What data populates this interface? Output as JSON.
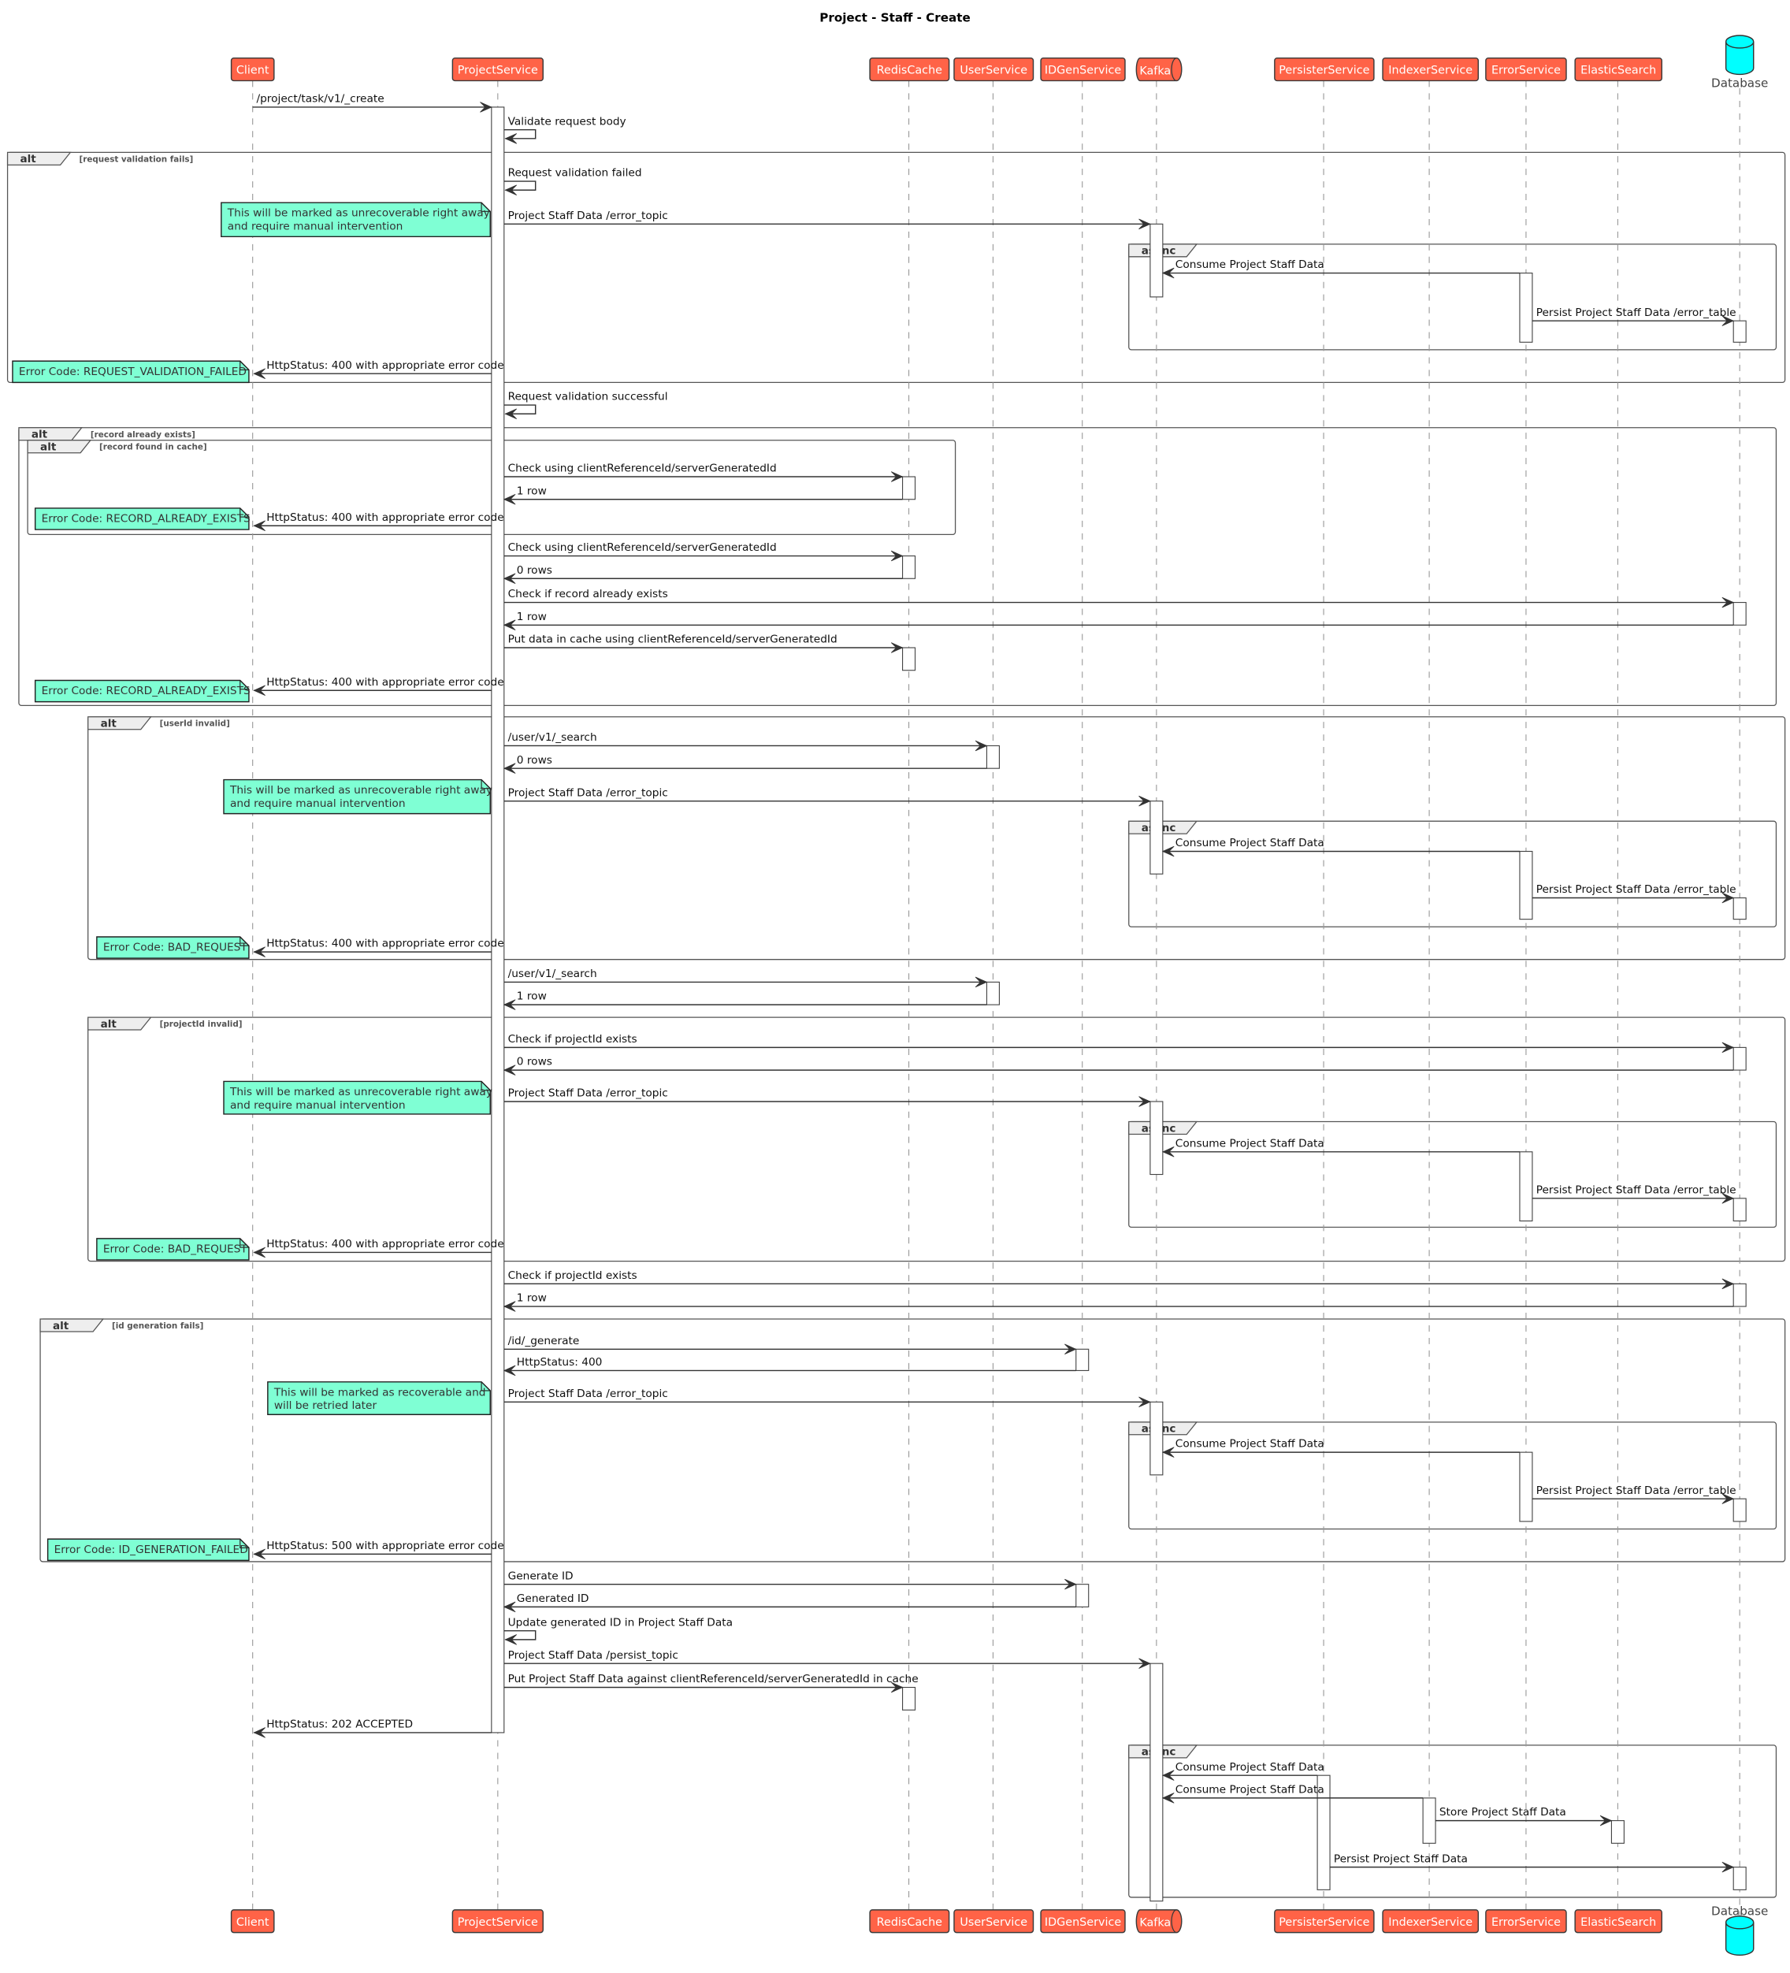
{
  "title": "Project - Staff - Create",
  "colors": {
    "participant_fill": "#FF6347",
    "participant_border": "#3A3A3A",
    "note_fill": "#7FFFD4",
    "database_fill": "#00FFFF",
    "line": "#333333"
  },
  "participants": [
    {
      "id": "C",
      "name": "Client",
      "type": "participant"
    },
    {
      "id": "PS",
      "name": "ProjectService",
      "type": "participant"
    },
    {
      "id": "R",
      "name": "RedisCache",
      "type": "participant"
    },
    {
      "id": "U",
      "name": "UserService",
      "type": "participant"
    },
    {
      "id": "ID",
      "name": "IDGenService",
      "type": "participant"
    },
    {
      "id": "K",
      "name": "Kafka",
      "type": "queue"
    },
    {
      "id": "P",
      "name": "PersisterService",
      "type": "participant"
    },
    {
      "id": "I",
      "name": "IndexerService",
      "type": "participant"
    },
    {
      "id": "E",
      "name": "ErrorService",
      "type": "participant"
    },
    {
      "id": "ES",
      "name": "ElasticSearch",
      "type": "participant"
    },
    {
      "id": "DB",
      "name": "Database",
      "type": "database"
    }
  ],
  "messages": [
    {
      "from": "C",
      "to": "PS",
      "label": "/project/task/v1/_create"
    },
    {
      "from": "PS",
      "to": "PS",
      "label": "Validate request body"
    },
    {
      "from": "PS",
      "to": "PS",
      "label": "Request validation failed"
    },
    {
      "from": "PS",
      "to": "K",
      "label": "Project Staff Data /error_topic"
    },
    {
      "from": "E",
      "to": "K",
      "label": "Consume Project Staff Data"
    },
    {
      "from": "E",
      "to": "DB",
      "label": "Persist Project Staff Data /error_table"
    },
    {
      "from": "PS",
      "to": "C",
      "label": "HttpStatus: 400 with appropriate error code"
    },
    {
      "from": "PS",
      "to": "PS",
      "label": "Request validation successful"
    },
    {
      "from": "PS",
      "to": "R",
      "label": "Check using clientReferenceId/serverGeneratedId"
    },
    {
      "from": "R",
      "to": "PS",
      "label": "1 row"
    },
    {
      "from": "PS",
      "to": "C",
      "label": "HttpStatus: 400 with appropriate error code"
    },
    {
      "from": "PS",
      "to": "R",
      "label": "Check using clientReferenceId/serverGeneratedId"
    },
    {
      "from": "R",
      "to": "PS",
      "label": "0 rows"
    },
    {
      "from": "PS",
      "to": "DB",
      "label": "Check if record already exists"
    },
    {
      "from": "DB",
      "to": "PS",
      "label": "1 row"
    },
    {
      "from": "PS",
      "to": "R",
      "label": "Put data in cache using clientReferenceId/serverGeneratedId"
    },
    {
      "from": "PS",
      "to": "C",
      "label": "HttpStatus: 400 with appropriate error code"
    },
    {
      "from": "PS",
      "to": "U",
      "label": "/user/v1/_search"
    },
    {
      "from": "U",
      "to": "PS",
      "label": "0 rows"
    },
    {
      "from": "PS",
      "to": "K",
      "label": "Project Staff Data /error_topic"
    },
    {
      "from": "E",
      "to": "K",
      "label": "Consume Project Staff Data"
    },
    {
      "from": "E",
      "to": "DB",
      "label": "Persist Project Staff Data /error_table"
    },
    {
      "from": "PS",
      "to": "C",
      "label": "HttpStatus: 400 with appropriate error code"
    },
    {
      "from": "PS",
      "to": "U",
      "label": "/user/v1/_search"
    },
    {
      "from": "U",
      "to": "PS",
      "label": "1 row"
    },
    {
      "from": "PS",
      "to": "DB",
      "label": "Check if projectId exists"
    },
    {
      "from": "DB",
      "to": "PS",
      "label": "0 rows"
    },
    {
      "from": "PS",
      "to": "K",
      "label": "Project Staff Data /error_topic"
    },
    {
      "from": "E",
      "to": "K",
      "label": "Consume Project Staff Data"
    },
    {
      "from": "E",
      "to": "DB",
      "label": "Persist Project Staff Data /error_table"
    },
    {
      "from": "PS",
      "to": "C",
      "label": "HttpStatus: 400 with appropriate error code"
    },
    {
      "from": "PS",
      "to": "DB",
      "label": "Check if projectId exists"
    },
    {
      "from": "DB",
      "to": "PS",
      "label": "1 row"
    },
    {
      "from": "PS",
      "to": "ID",
      "label": "/id/_generate"
    },
    {
      "from": "ID",
      "to": "PS",
      "label": "HttpStatus: 400"
    },
    {
      "from": "PS",
      "to": "K",
      "label": "Project Staff Data /error_topic"
    },
    {
      "from": "E",
      "to": "K",
      "label": "Consume Project Staff Data"
    },
    {
      "from": "E",
      "to": "DB",
      "label": "Persist Project Staff Data /error_table"
    },
    {
      "from": "PS",
      "to": "C",
      "label": "HttpStatus: 500 with appropriate error code"
    },
    {
      "from": "PS",
      "to": "ID",
      "label": "Generate ID"
    },
    {
      "from": "ID",
      "to": "PS",
      "label": "Generated ID"
    },
    {
      "from": "PS",
      "to": "PS",
      "label": "Update generated ID in Project Staff Data"
    },
    {
      "from": "PS",
      "to": "K",
      "label": "Project Staff Data /persist_topic"
    },
    {
      "from": "PS",
      "to": "R",
      "label": "Put Project Staff Data against clientReferenceId/serverGeneratedId in cache"
    },
    {
      "from": "PS",
      "to": "C",
      "label": "HttpStatus: 202 ACCEPTED"
    },
    {
      "from": "P",
      "to": "K",
      "label": "Consume Project Staff Data"
    },
    {
      "from": "I",
      "to": "K",
      "label": "Consume Project Staff Data"
    },
    {
      "from": "I",
      "to": "ES",
      "label": "Store Project Staff Data"
    },
    {
      "from": "P",
      "to": "DB",
      "label": "Persist Project Staff Data"
    }
  ],
  "fragments": [
    {
      "kind": "alt",
      "guard": "[request validation fails]"
    },
    {
      "kind": "async",
      "guard": ""
    },
    {
      "kind": "alt",
      "guard": "[record already exists]"
    },
    {
      "kind": "alt",
      "guard": "[record found in cache]"
    },
    {
      "kind": "alt",
      "guard": "[userId invalid]"
    },
    {
      "kind": "async",
      "guard": ""
    },
    {
      "kind": "alt",
      "guard": "[projectId invalid]"
    },
    {
      "kind": "async",
      "guard": ""
    },
    {
      "kind": "alt",
      "guard": "[id generation fails]"
    },
    {
      "kind": "async",
      "guard": ""
    },
    {
      "kind": "async",
      "guard": ""
    }
  ],
  "notes": [
    {
      "lines": [
        "This will be marked as unrecoverable right away",
        "and require manual intervention"
      ]
    },
    {
      "lines": [
        "Error Code: REQUEST_VALIDATION_FAILED"
      ]
    },
    {
      "lines": [
        "Error Code: RECORD_ALREADY_EXISTS"
      ]
    },
    {
      "lines": [
        "Error Code: RECORD_ALREADY_EXISTS"
      ]
    },
    {
      "lines": [
        "This will be marked as unrecoverable right away",
        "and require manual intervention"
      ]
    },
    {
      "lines": [
        "Error Code: BAD_REQUEST"
      ]
    },
    {
      "lines": [
        "This will be marked as unrecoverable right away",
        "and require manual intervention"
      ]
    },
    {
      "lines": [
        "Error Code: BAD_REQUEST"
      ]
    },
    {
      "lines": [
        "This will be marked as recoverable and",
        "will be retried later"
      ]
    },
    {
      "lines": [
        "Error Code: ID_GENERATION_FAILED"
      ]
    }
  ]
}
